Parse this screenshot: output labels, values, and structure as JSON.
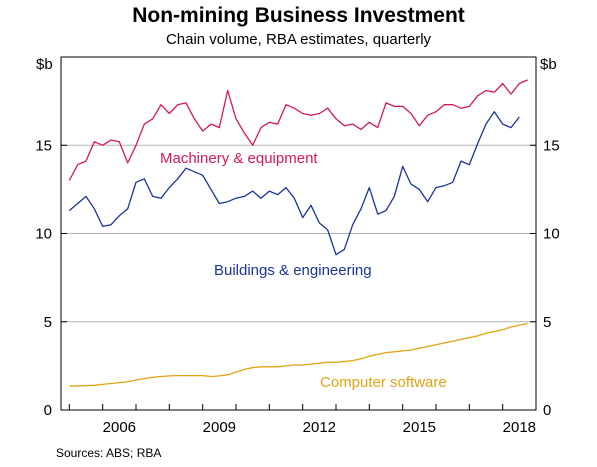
{
  "chart_data": {
    "type": "line",
    "title": "Non-mining Business Investment",
    "subtitle": "Chain volume, RBA estimates, quarterly",
    "source": "Sources:   ABS; RBA",
    "y_unit_left": "$b",
    "y_unit_right": "$b",
    "ylim": [
      0,
      20
    ],
    "yticks": [
      0,
      5,
      10,
      15
    ],
    "xlim": [
      2004.75,
      2019.0
    ],
    "xticks": [
      2006,
      2009,
      2012,
      2015,
      2018
    ],
    "grid": true,
    "x_start": 2005.0,
    "x_step": 0.25,
    "series": [
      {
        "name": "Machinery & equipment",
        "color": "#d3175f",
        "values": [
          13.0,
          13.9,
          14.1,
          15.2,
          15.0,
          15.3,
          15.2,
          14.0,
          15.0,
          16.2,
          16.5,
          17.3,
          16.8,
          17.3,
          17.4,
          16.5,
          15.8,
          16.2,
          16.0,
          18.1,
          16.5,
          15.7,
          15.0,
          16.0,
          16.3,
          16.2,
          17.3,
          17.1,
          16.8,
          16.7,
          16.8,
          17.1,
          16.5,
          16.1,
          16.2,
          15.9,
          16.3,
          16.0,
          17.4,
          17.2,
          17.2,
          16.8,
          16.1,
          16.7,
          16.9,
          17.3,
          17.3,
          17.1,
          17.2,
          17.8,
          18.1,
          18.0,
          18.5,
          17.9,
          18.5,
          18.7
        ]
      },
      {
        "name": "Buildings & engineering",
        "color": "#1a3399",
        "values": [
          11.3,
          11.7,
          12.1,
          11.4,
          10.4,
          10.5,
          11.0,
          11.4,
          12.9,
          13.1,
          12.1,
          12.0,
          12.6,
          13.1,
          13.7,
          13.5,
          13.3,
          12.5,
          11.7,
          11.8,
          12.0,
          12.1,
          12.4,
          12.0,
          12.4,
          12.2,
          12.6,
          12.0,
          10.9,
          11.6,
          10.6,
          10.2,
          8.8,
          9.1,
          10.5,
          11.4,
          12.6,
          11.1,
          11.3,
          12.1,
          13.8,
          12.8,
          12.5,
          11.8,
          12.6,
          12.7,
          12.9,
          14.1,
          13.9,
          15.1,
          16.2,
          16.9,
          16.2,
          16.0,
          16.6
        ]
      },
      {
        "name": "Computer software",
        "color": "#e1a313",
        "values": [
          1.35,
          1.37,
          1.38,
          1.4,
          1.45,
          1.5,
          1.55,
          1.6,
          1.7,
          1.78,
          1.85,
          1.9,
          1.93,
          1.95,
          1.95,
          1.95,
          1.95,
          1.9,
          1.93,
          2.0,
          2.15,
          2.3,
          2.4,
          2.45,
          2.45,
          2.45,
          2.5,
          2.55,
          2.55,
          2.6,
          2.65,
          2.7,
          2.7,
          2.75,
          2.8,
          2.9,
          3.05,
          3.15,
          3.25,
          3.3,
          3.35,
          3.4,
          3.5,
          3.6,
          3.7,
          3.8,
          3.9,
          4.0,
          4.1,
          4.2,
          4.35,
          4.45,
          4.55,
          4.7,
          4.8,
          4.9
        ]
      }
    ]
  }
}
